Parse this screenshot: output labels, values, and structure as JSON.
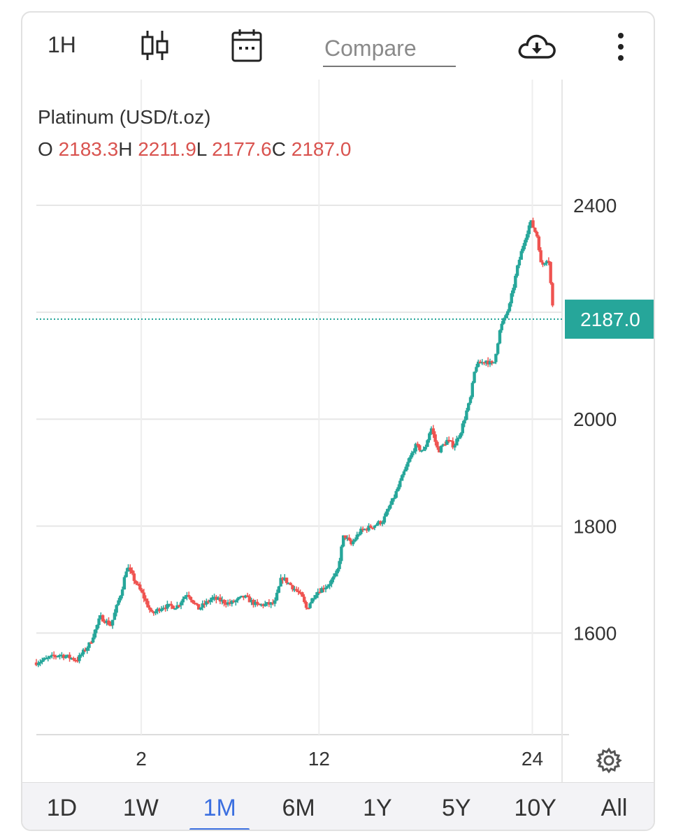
{
  "toolbar": {
    "interval": "1H",
    "compare_placeholder": "Compare",
    "icons": [
      "candlestick-icon",
      "calendar-icon",
      "cloud-download-icon",
      "more-vertical-icon"
    ]
  },
  "legend": {
    "title": "Platinum (USD/t.oz)",
    "o_label": "O",
    "o_value": "2183.3",
    "h_label": "H",
    "h_value": "2211.9",
    "l_label": "L",
    "l_value": "2177.6",
    "c_label": "C",
    "c_value": "2187.0"
  },
  "colors": {
    "up": "#26a69a",
    "down": "#ef5350",
    "accent": "#3b6fe0",
    "last_price_bg": "#26a69a"
  },
  "range_buttons": [
    {
      "label": "1D",
      "active": false
    },
    {
      "label": "1W",
      "active": false
    },
    {
      "label": "1M",
      "active": true
    },
    {
      "label": "6M",
      "active": false
    },
    {
      "label": "1Y",
      "active": false
    },
    {
      "label": "5Y",
      "active": false
    },
    {
      "label": "10Y",
      "active": false
    },
    {
      "label": "All",
      "active": false
    }
  ],
  "chart_data": {
    "type": "candlestick",
    "title": "Platinum (USD/t.oz)",
    "interval": "1H",
    "y_ticks": [
      1600,
      1800,
      2000,
      2400
    ],
    "y_range": [
      1410,
      2430
    ],
    "x_ticks": [
      {
        "label": "2",
        "day": 2
      },
      {
        "label": "12",
        "day": 12
      },
      {
        "label": "24",
        "day": 24
      }
    ],
    "x_range_days": [
      -3.9,
      25.2
    ],
    "last_price": 2187.0,
    "last_price_label": "2187.0",
    "price_path": [
      [
        -3.9,
        1545
      ],
      [
        -2.6,
        1560
      ],
      [
        -1.6,
        1550
      ],
      [
        -0.9,
        1580
      ],
      [
        -0.3,
        1630
      ],
      [
        0.3,
        1615
      ],
      [
        0.9,
        1680
      ],
      [
        1.2,
        1725
      ],
      [
        1.6,
        1700
      ],
      [
        2.1,
        1670
      ],
      [
        2.6,
        1635
      ],
      [
        3.2,
        1650
      ],
      [
        4.0,
        1650
      ],
      [
        4.6,
        1675
      ],
      [
        5.2,
        1645
      ],
      [
        6.0,
        1665
      ],
      [
        7.0,
        1655
      ],
      [
        7.8,
        1668
      ],
      [
        8.5,
        1652
      ],
      [
        9.5,
        1655
      ],
      [
        9.9,
        1705
      ],
      [
        10.4,
        1690
      ],
      [
        11.0,
        1670
      ],
      [
        11.3,
        1645
      ],
      [
        11.8,
        1675
      ],
      [
        12.5,
        1690
      ],
      [
        13.0,
        1710
      ],
      [
        13.4,
        1785
      ],
      [
        13.8,
        1765
      ],
      [
        14.3,
        1790
      ],
      [
        15.0,
        1800
      ],
      [
        15.6,
        1810
      ],
      [
        16.3,
        1860
      ],
      [
        16.9,
        1910
      ],
      [
        17.4,
        1950
      ],
      [
        17.9,
        1940
      ],
      [
        18.3,
        1985
      ],
      [
        18.7,
        1940
      ],
      [
        19.2,
        1960
      ],
      [
        19.6,
        1950
      ],
      [
        20.0,
        1980
      ],
      [
        20.3,
        2015
      ],
      [
        20.5,
        2035
      ],
      [
        20.8,
        2100
      ],
      [
        21.4,
        2110
      ],
      [
        21.8,
        2100
      ],
      [
        22.2,
        2170
      ],
      [
        22.7,
        2210
      ],
      [
        23.2,
        2290
      ],
      [
        23.6,
        2340
      ],
      [
        23.9,
        2370
      ],
      [
        24.3,
        2340
      ],
      [
        24.5,
        2285
      ],
      [
        24.9,
        2305
      ],
      [
        25.2,
        2187
      ]
    ]
  }
}
